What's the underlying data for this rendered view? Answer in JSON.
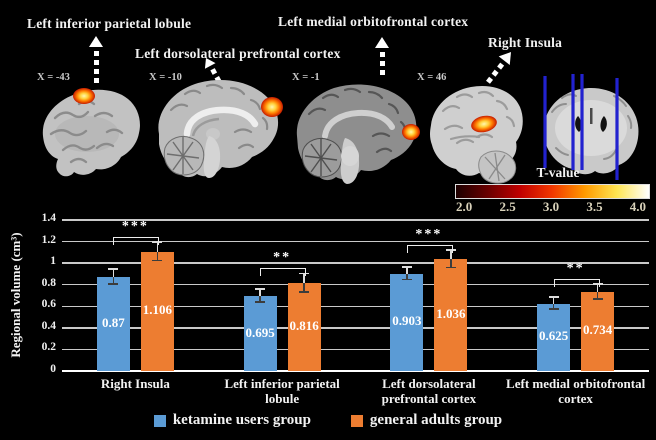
{
  "background": "#000000",
  "figure": {
    "region_labels": [
      {
        "text": "Left inferior parietal lobule"
      },
      {
        "text": "Left dorsolateral prefrontal cortex"
      },
      {
        "text": "Left medial orbitofrontal cortex"
      },
      {
        "text": "Right Insula"
      }
    ],
    "slice_coords": [
      {
        "text": "X = -43"
      },
      {
        "text": "X = -10"
      },
      {
        "text": "X = -1"
      },
      {
        "text": "X = 46"
      }
    ],
    "icons": {
      "arrow": "dashed-arrow-up-icon",
      "brains": [
        "brain-sagittal-slice",
        "brain-medial-slice",
        "brain-medial-slice",
        "brain-sagittal-slice",
        "brain-coronal-slice"
      ]
    },
    "colorbar": {
      "title": "T-value",
      "ticks": [
        "2.0",
        "2.5",
        "3.0",
        "3.5",
        "4.0"
      ],
      "gradient": [
        "#1c0000",
        "#6a0000",
        "#c00000",
        "#f23800",
        "#ff9a00",
        "#ffe552",
        "#ffffff"
      ]
    }
  },
  "chart_data": {
    "type": "bar",
    "title": "",
    "xlabel": "",
    "ylabel": "Regional volume (cm³)",
    "ylim": [
      0,
      1.4
    ],
    "grid": true,
    "legend_position": "bottom",
    "yticks": [
      {
        "label": "0",
        "value": 0
      },
      {
        "label": "0.2",
        "value": 0.2
      },
      {
        "label": "0.4",
        "value": 0.4
      },
      {
        "label": "0.6",
        "value": 0.6
      },
      {
        "label": "0.8",
        "value": 0.8
      },
      {
        "label": "1",
        "value": 1
      },
      {
        "label": "1.2",
        "value": 1.2
      },
      {
        "label": "1.4",
        "value": 1.4
      }
    ],
    "categories": [
      {
        "lines": [
          "Right Insula"
        ]
      },
      {
        "lines": [
          "Left inferior parietal",
          "lobule"
        ]
      },
      {
        "lines": [
          "Left dorsolateral",
          "prefrontal cortex"
        ]
      },
      {
        "lines": [
          "Left medial orbitofrontal",
          "cortex"
        ]
      }
    ],
    "series": [
      {
        "name": "ketamine users group",
        "color": "#5b9bd5",
        "values": [
          0.87,
          0.695,
          0.903,
          0.625
        ],
        "value_labels": [
          "0.87",
          "0.695",
          "0.903",
          "0.625"
        ],
        "errors": [
          0.065,
          0.055,
          0.055,
          0.05
        ]
      },
      {
        "name": "general adults group",
        "color": "#ed7d31",
        "values": [
          1.106,
          0.816,
          1.036,
          0.734
        ],
        "value_labels": [
          "1.106",
          "0.816",
          "1.036",
          "0.734"
        ],
        "errors": [
          0.08,
          0.08,
          0.075,
          0.065
        ]
      }
    ],
    "significance": [
      "***",
      "**",
      "***",
      "**"
    ]
  }
}
